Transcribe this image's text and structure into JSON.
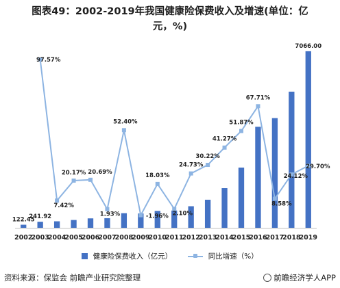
{
  "chart_data": {
    "type": "bar+line",
    "title": "图表49：2002-2019年我国健康险保费收入及增速(单位：亿元，%)",
    "title_line1": "图表49：2002-2019年我国健康险保费收入及增速(单位：亿",
    "title_line2": "元，%)",
    "categories": [
      "2002",
      "2003",
      "2004",
      "2005",
      "2006",
      "2007",
      "2008",
      "2009",
      "2010",
      "2011",
      "2012",
      "2013",
      "2014",
      "2015",
      "2016",
      "2017",
      "2018",
      "2019"
    ],
    "series": [
      {
        "name": "健康险保费收入（亿元）",
        "type": "bar",
        "axis": "left",
        "values": [
          122.45,
          241.92,
          259.8,
          312.2,
          376.9,
          384.2,
          585.5,
          573.9,
          677.5,
          691.7,
          862.8,
          1123.5,
          1587.2,
          2410.5,
          4042.5,
          4389.5,
          5448.1,
          7066.0
        ],
        "labels": [
          "122.45",
          "241.92",
          "",
          "",
          "",
          "",
          "",
          "",
          "",
          "",
          "",
          "",
          "",
          "",
          "",
          "",
          "",
          "7066.00"
        ]
      },
      {
        "name": "同比增速（%）",
        "type": "line",
        "axis": "right",
        "values": [
          null,
          97.57,
          7.42,
          20.17,
          20.69,
          1.93,
          52.4,
          -1.96,
          18.03,
          2.1,
          24.73,
          30.22,
          41.27,
          51.87,
          67.71,
          8.58,
          24.12,
          29.7
        ],
        "labels": [
          "",
          "97.57%",
          "7.42%",
          "20.17%",
          "20.69%",
          "1.93%",
          "52.40%",
          "-1.96%",
          "18.03%",
          "2.10%",
          "24.73%",
          "30.22%",
          "41.27%",
          "51.87%",
          "67.71%",
          "8.58%",
          "24.12%",
          "29.70%"
        ]
      }
    ],
    "ylim_left": [
      0,
      7200
    ],
    "ylim_right": [
      -10,
      105
    ],
    "grid": false,
    "legend_placement": "bottom",
    "colors": {
      "bar": "#4472c4",
      "line": "#8db4e2",
      "axis": "#bfbfbf"
    }
  },
  "legend": {
    "bar_label": "健康险保费收入（亿元）",
    "line_label": "同比增速（%）"
  },
  "footer": {
    "source": "资料来源：保监会 前瞻产业研究院整理",
    "brand": "前瞻经济学人APP"
  }
}
